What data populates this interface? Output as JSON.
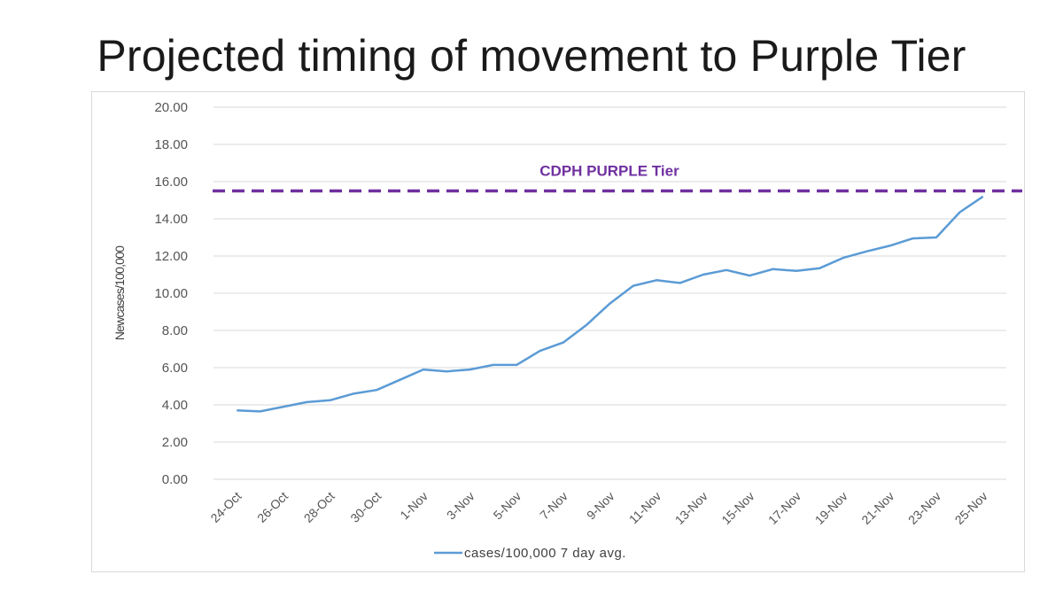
{
  "slide": {
    "title": "Projected timing of movement to Purple Tier"
  },
  "colors": {
    "series": "#5b9bd5",
    "threshold": "#7030a0",
    "grid": "#d9d9d9"
  },
  "chart_data": {
    "type": "line",
    "title": "",
    "xlabel": "",
    "ylabel": "Newcases/100,000",
    "ylim": [
      0,
      20
    ],
    "y_ticks": [
      "0.00",
      "2.00",
      "4.00",
      "6.00",
      "8.00",
      "10.00",
      "12.00",
      "14.00",
      "16.00",
      "18.00",
      "20.00"
    ],
    "grid": true,
    "legend_position": "bottom",
    "x_tick_labels": [
      "24-Oct",
      "26-Oct",
      "28-Oct",
      "30-Oct",
      "1-Nov",
      "3-Nov",
      "5-Nov",
      "7-Nov",
      "9-Nov",
      "11-Nov",
      "13-Nov",
      "15-Nov",
      "17-Nov",
      "19-Nov",
      "21-Nov",
      "23-Nov",
      "25-Nov"
    ],
    "x": [
      "24-Oct",
      "25-Oct",
      "26-Oct",
      "27-Oct",
      "28-Oct",
      "29-Oct",
      "30-Oct",
      "31-Oct",
      "1-Nov",
      "2-Nov",
      "3-Nov",
      "4-Nov",
      "5-Nov",
      "6-Nov",
      "7-Nov",
      "8-Nov",
      "9-Nov",
      "10-Nov",
      "11-Nov",
      "12-Nov",
      "13-Nov",
      "14-Nov",
      "15-Nov",
      "16-Nov",
      "17-Nov",
      "18-Nov",
      "19-Nov",
      "20-Nov",
      "21-Nov",
      "22-Nov",
      "23-Nov",
      "24-Nov",
      "25-Nov"
    ],
    "series": [
      {
        "name": "cases/100,000 7 day avg.",
        "values": [
          3.7,
          3.65,
          3.9,
          4.15,
          4.25,
          4.6,
          4.8,
          5.35,
          5.9,
          5.8,
          5.9,
          6.15,
          6.15,
          6.9,
          7.35,
          8.3,
          9.45,
          10.4,
          10.7,
          10.55,
          11.0,
          11.25,
          10.95,
          11.3,
          11.2,
          11.35,
          11.9,
          12.25,
          12.55,
          12.95,
          13.0,
          14.35,
          15.2
        ]
      }
    ],
    "reference_line": {
      "label": "CDPH PURPLE Tier",
      "value": 15.5
    }
  }
}
